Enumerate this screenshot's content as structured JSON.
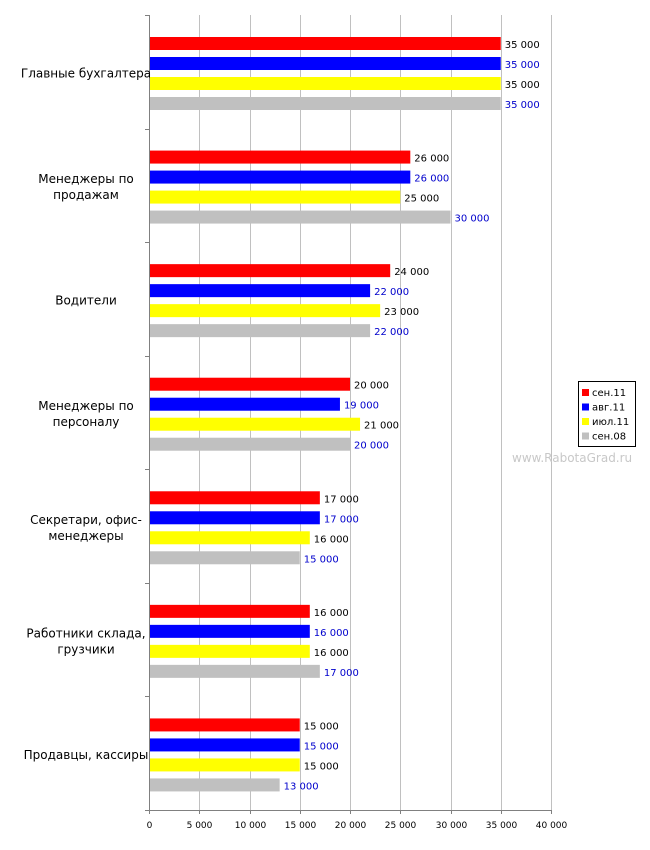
{
  "watermark": "www.RabotaGrad.ru",
  "chart_data": {
    "type": "bar",
    "orientation": "horizontal",
    "title": "",
    "xlabel": "",
    "ylabel": "",
    "xlim": [
      0,
      40000
    ],
    "x_ticks": [
      "0",
      "5 000",
      "10 000",
      "15 000",
      "20 000",
      "25 000",
      "30 000",
      "35 000",
      "40 000"
    ],
    "grid": "vertical",
    "legend_position": "right",
    "categories": [
      "Главные бухгалтера",
      "Менеджеры по продажам",
      "Водители",
      "Менеджеры по персоналу",
      "Секретари, офис-менеджеры",
      "Работники склада, грузчики",
      "Продавцы, кассиры"
    ],
    "category_lines": [
      [
        "Главные бухгалтера"
      ],
      [
        "Менеджеры по",
        "продажам"
      ],
      [
        "Водители"
      ],
      [
        "Менеджеры по",
        "персоналу"
      ],
      [
        "Секретари, офис-",
        "менеджеры"
      ],
      [
        "Работники склада,",
        "грузчики"
      ],
      [
        "Продавцы, кассиры"
      ]
    ],
    "series": [
      {
        "name": "сен.11",
        "color": "#ff0000",
        "label_color": "#000000",
        "values": [
          35000,
          26000,
          24000,
          20000,
          17000,
          16000,
          15000
        ],
        "labels": [
          "35 000",
          "26 000",
          "24 000",
          "20 000",
          "17 000",
          "16 000",
          "15 000"
        ]
      },
      {
        "name": "авг.11",
        "color": "#0000ff",
        "label_color": "#0000cc",
        "values": [
          35000,
          26000,
          22000,
          19000,
          17000,
          16000,
          15000
        ],
        "labels": [
          "35 000",
          "26 000",
          "22 000",
          "19 000",
          "17 000",
          "16 000",
          "15 000"
        ]
      },
      {
        "name": "июл.11",
        "color": "#ffff00",
        "label_color": "#000000",
        "values": [
          35000,
          25000,
          23000,
          21000,
          16000,
          16000,
          15000
        ],
        "labels": [
          "35 000",
          "25 000",
          "23 000",
          "21 000",
          "16 000",
          "16 000",
          "15 000"
        ]
      },
      {
        "name": "сен.08",
        "color": "#c0c0c0",
        "label_color": "#0000cc",
        "values": [
          35000,
          30000,
          22000,
          20000,
          15000,
          17000,
          13000
        ],
        "labels": [
          "35 000",
          "30 000",
          "22 000",
          "20 000",
          "15 000",
          "17 000",
          "13 000"
        ]
      }
    ]
  }
}
